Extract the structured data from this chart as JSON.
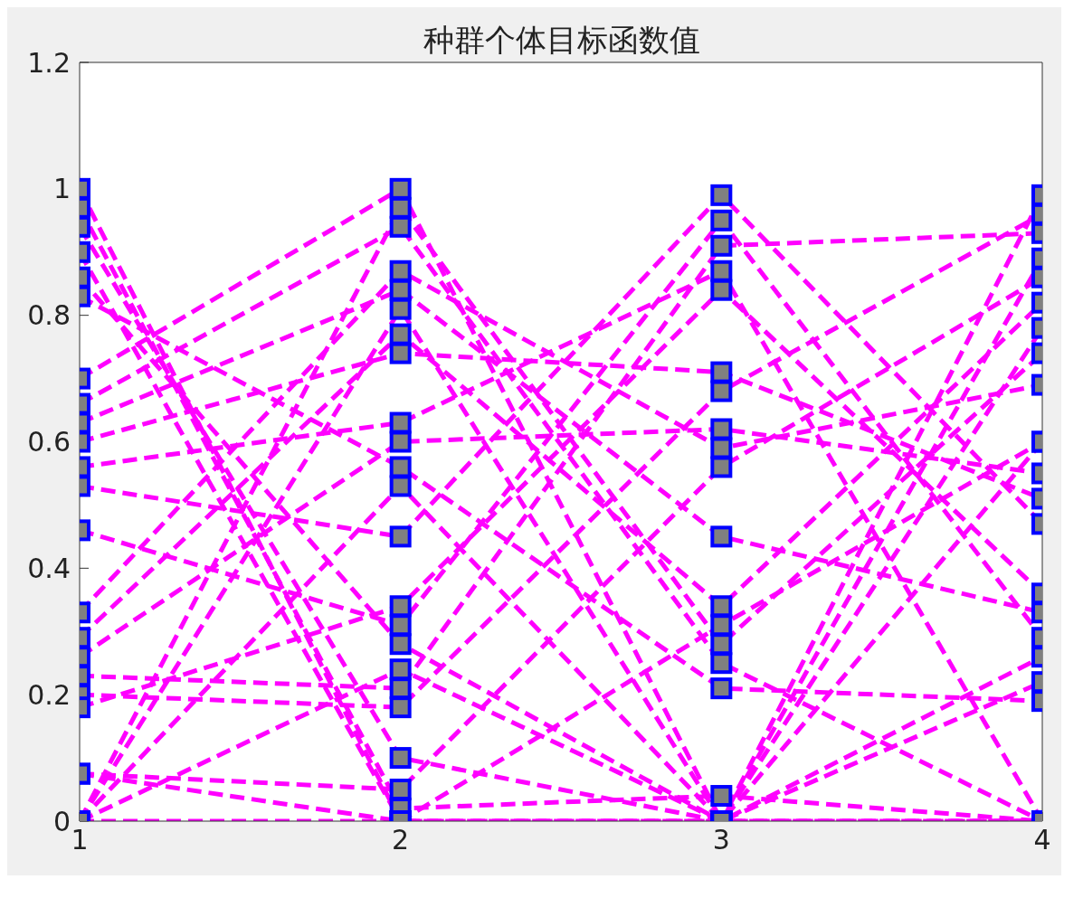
{
  "chart_data": {
    "type": "line",
    "title": "种群个体目标函数值",
    "x": [
      1,
      2,
      3,
      4
    ],
    "xlim": [
      1,
      4
    ],
    "xticks": [
      1,
      2,
      3,
      4
    ],
    "ylim": [
      0,
      1.2
    ],
    "yticks": [
      0,
      0.2,
      0.4,
      0.6,
      0.8,
      1,
      1.2
    ],
    "marker": "square",
    "line_style": "dashed",
    "series": [
      {
        "color": "#ff00ff",
        "values": [
          1.0,
          0,
          0,
          0
        ]
      },
      {
        "color": "#ff00ff",
        "values": [
          0.97,
          0.02,
          0.04,
          0
        ]
      },
      {
        "color": "#ff00ff",
        "values": [
          0.94,
          0.1,
          0,
          0.26
        ]
      },
      {
        "color": "#ff00ff",
        "values": [
          0.9,
          0,
          0.31,
          0.6
        ]
      },
      {
        "color": "#ff00ff",
        "values": [
          0.86,
          0.28,
          0,
          0.99
        ]
      },
      {
        "color": "#ff00ff",
        "values": [
          0.83,
          0.56,
          0.21,
          0.19
        ]
      },
      {
        "color": "#ff00ff",
        "values": [
          0.7,
          1.0,
          0,
          0.22
        ]
      },
      {
        "color": "#ff00ff",
        "values": [
          0.66,
          0.94,
          0.25,
          0
        ]
      },
      {
        "color": "#ff00ff",
        "values": [
          0.63,
          0.84,
          0.45,
          0.33
        ]
      },
      {
        "color": "#ff00ff",
        "values": [
          0.6,
          0.74,
          0.71,
          0.51
        ]
      },
      {
        "color": "#ff00ff",
        "values": [
          0.56,
          0.63,
          0.87,
          0
        ]
      },
      {
        "color": "#ff00ff",
        "values": [
          0.53,
          0.45,
          0.99,
          0.47
        ]
      },
      {
        "color": "#ff00ff",
        "values": [
          0.46,
          0.31,
          0.95,
          0.29
        ]
      },
      {
        "color": "#ff00ff",
        "values": [
          0.33,
          0.87,
          0.59,
          0.69
        ]
      },
      {
        "color": "#ff00ff",
        "values": [
          0.29,
          0.77,
          0.34,
          0.82
        ]
      },
      {
        "color": "#ff00ff",
        "values": [
          0.26,
          0.6,
          0.62,
          0.55
        ]
      },
      {
        "color": "#ff00ff",
        "values": [
          0.23,
          0.21,
          0.91,
          0.93
        ]
      },
      {
        "color": "#ff00ff",
        "values": [
          0.2,
          0.18,
          0.68,
          0.96
        ]
      },
      {
        "color": "#ff00ff",
        "values": [
          0.18,
          0.34,
          0.84,
          0.36
        ]
      },
      {
        "color": "#ff00ff",
        "values": [
          0.075,
          0.05,
          0.56,
          0.86
        ]
      },
      {
        "color": "#ff00ff",
        "values": [
          0,
          0.97,
          0.28,
          0.74
        ]
      },
      {
        "color": "#ff00ff",
        "values": [
          0,
          0.81,
          0,
          0.89
        ]
      },
      {
        "color": "#ff00ff",
        "values": [
          0,
          0.24,
          0,
          0.78
        ]
      },
      {
        "color": "#ff00ff",
        "values": [
          0,
          0.53,
          0,
          0.6
        ]
      },
      {
        "color": "#ff00ff",
        "values": [
          0.075,
          0,
          0,
          0
        ]
      },
      {
        "color": "#ff00ff",
        "values": [
          0,
          0,
          0,
          0
        ]
      }
    ]
  }
}
